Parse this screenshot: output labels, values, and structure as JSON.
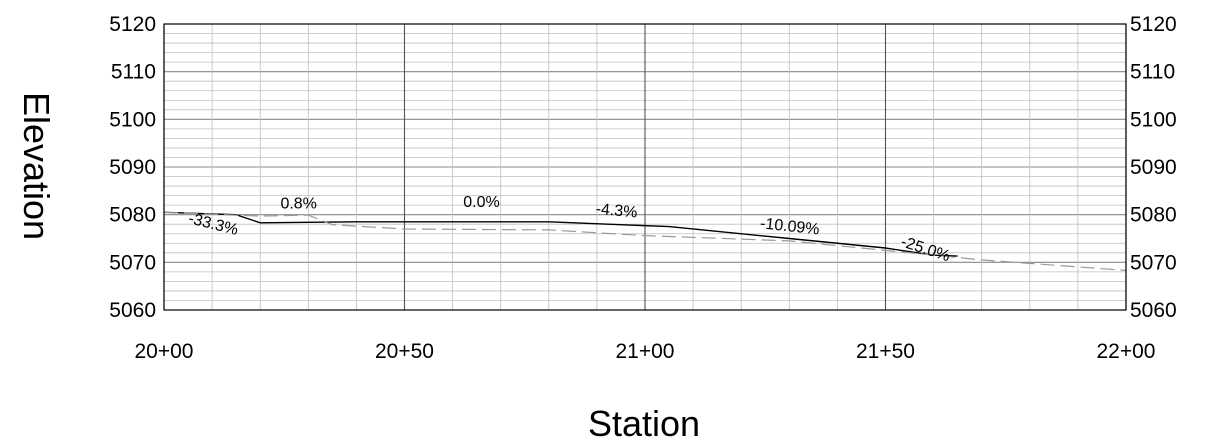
{
  "chart_data": {
    "type": "line",
    "xlabel": "Station",
    "ylabel": "Elevation",
    "xlim": [
      2000,
      2200
    ],
    "ylim": [
      5060,
      5120
    ],
    "x_ticks": [
      {
        "value": 2000,
        "label": "20+00"
      },
      {
        "value": 2050,
        "label": "20+50"
      },
      {
        "value": 2100,
        "label": "21+00"
      },
      {
        "value": 2150,
        "label": "21+50"
      },
      {
        "value": 2200,
        "label": "22+00"
      }
    ],
    "y_ticks": [
      5060,
      5070,
      5080,
      5090,
      5100,
      5110,
      5120
    ],
    "grid": {
      "major": true,
      "minor": true,
      "x_minor_step": 10,
      "y_minor_step": 2
    },
    "series": [
      {
        "style": "solid",
        "color": "#000000",
        "x": [
          2000,
          2015,
          2020,
          2030,
          2040,
          2060,
          2080,
          2105,
          2130,
          2150,
          2160,
          2165
        ],
        "y": [
          5080.5,
          5080.0,
          5078.3,
          5078.4,
          5078.5,
          5078.5,
          5078.5,
          5077.5,
          5075.0,
          5073.0,
          5071.5,
          5071.3
        ]
      },
      {
        "style": "dashed",
        "color": "#999999",
        "x": [
          2000,
          2020,
          2030,
          2035,
          2050,
          2080,
          2100,
          2130,
          2150,
          2170,
          2200
        ],
        "y": [
          5080.5,
          5079.7,
          5079.9,
          5077.9,
          5077.0,
          5076.8,
          5075.6,
          5074.5,
          5072.5,
          5070.5,
          5068.3
        ]
      }
    ],
    "annotations": [
      {
        "text": "-33.3%",
        "x": 2010,
        "y": 5077.0,
        "angle": 14
      },
      {
        "text": "0.8%",
        "x": 2028,
        "y": 5081.3,
        "angle": 0
      },
      {
        "text": "0.0%",
        "x": 2066,
        "y": 5081.6,
        "angle": 0
      },
      {
        "text": "-4.3%",
        "x": 2094,
        "y": 5079.8,
        "angle": 5
      },
      {
        "text": "-10.09%",
        "x": 2130,
        "y": 5076.5,
        "angle": 6
      },
      {
        "text": "-25.0%",
        "x": 2158,
        "y": 5071.8,
        "angle": 18
      }
    ]
  }
}
